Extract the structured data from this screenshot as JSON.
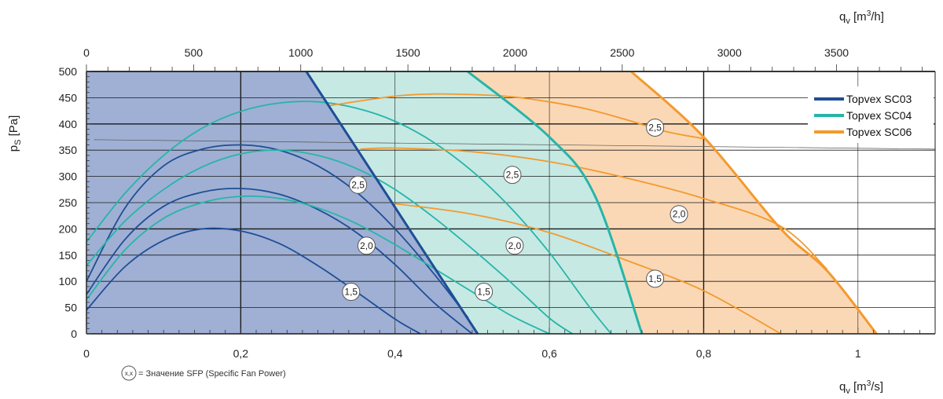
{
  "chart_data": {
    "type": "line",
    "x_bottom": {
      "unit": "m3/s",
      "range": [
        0,
        1.1
      ],
      "ticks": [
        "0",
        "0,2",
        "0,4",
        "0,6",
        "0,8",
        "1"
      ],
      "tick_values": [
        0,
        0.2,
        0.4,
        0.6,
        0.8,
        1.0
      ]
    },
    "x_top": {
      "unit": "m3/h",
      "range": [
        0,
        3960
      ],
      "ticks": [
        "0",
        "500",
        "1000",
        "1500",
        "2000",
        "2500",
        "3000",
        "3500"
      ],
      "tick_values": [
        0,
        500,
        1000,
        1500,
        2000,
        2500,
        3000,
        3500
      ]
    },
    "y": {
      "range": [
        0,
        500
      ],
      "ticks": [
        "0",
        "50",
        "100",
        "150",
        "200",
        "250",
        "300",
        "350",
        "400",
        "450",
        "500"
      ],
      "tick_values": [
        0,
        50,
        100,
        150,
        200,
        250,
        300,
        350,
        400,
        450,
        500
      ]
    },
    "axis_labels": {
      "y_main": "p",
      "y_sub": "S",
      "y_unit": "[Pa]",
      "x_bottom_main": "q",
      "x_bottom_sub": "v",
      "x_bottom_unit_a": "[m",
      "x_bottom_unit_sup": "3",
      "x_bottom_unit_b": "/s]",
      "x_top_main": "q",
      "x_top_sub": "v",
      "x_top_unit_a": "[m",
      "x_top_unit_sup": "3",
      "x_top_unit_b": "/h]"
    },
    "legend": {
      "placement": "top-right",
      "entries": [
        "Topvex SC03",
        "Topvex SC04",
        "Topvex SC06"
      ]
    },
    "note": {
      "symbol": "x,x",
      "text": "= Значение SFP (Specific Fan Power)"
    },
    "colors": {
      "SC03": "#1f4e96",
      "SC04": "#26b5a8",
      "SC06": "#f39a2e",
      "SC03_fill": "#9fb0d4",
      "SC04_fill": "#c6e9e4",
      "SC06_fill": "#fad8b6"
    },
    "regions": [
      {
        "name": "Topvex SC03",
        "boundary": [
          [
            0.285,
            500
          ],
          [
            0.507,
            0
          ]
        ]
      },
      {
        "name": "Topvex SC04",
        "boundary": [
          [
            0.494,
            500
          ],
          [
            0.6,
            375
          ],
          [
            0.66,
            260
          ],
          [
            0.72,
            0
          ]
        ]
      },
      {
        "name": "Topvex SC06",
        "boundary": [
          [
            0.706,
            500
          ],
          [
            0.8,
            375
          ],
          [
            0.9,
            200
          ],
          [
            0.96,
            120
          ],
          [
            1.024,
            0
          ]
        ]
      }
    ],
    "curves": [
      {
        "series": "Topvex SC03",
        "points": [
          [
            0,
            100
          ],
          [
            0.05,
            240
          ],
          [
            0.1,
            320
          ],
          [
            0.15,
            352
          ],
          [
            0.2,
            360
          ],
          [
            0.25,
            350
          ],
          [
            0.3,
            320
          ],
          [
            0.35,
            270
          ],
          [
            0.4,
            200
          ],
          [
            0.45,
            115
          ],
          [
            0.495,
            30
          ]
        ]
      },
      {
        "series": "Topvex SC03",
        "points": [
          [
            0,
            75
          ],
          [
            0.05,
            180
          ],
          [
            0.1,
            243
          ],
          [
            0.15,
            270
          ],
          [
            0.2,
            277
          ],
          [
            0.25,
            266
          ],
          [
            0.3,
            237
          ],
          [
            0.35,
            193
          ],
          [
            0.4,
            132
          ],
          [
            0.45,
            60
          ],
          [
            0.5,
            0
          ]
        ]
      },
      {
        "series": "Topvex SC03",
        "points": [
          [
            0,
            45
          ],
          [
            0.05,
            128
          ],
          [
            0.1,
            178
          ],
          [
            0.15,
            200
          ],
          [
            0.2,
            196
          ],
          [
            0.25,
            172
          ],
          [
            0.3,
            130
          ],
          [
            0.35,
            80
          ],
          [
            0.4,
            28
          ],
          [
            0.433,
            0
          ]
        ]
      },
      {
        "series": "Topvex SC04",
        "points": [
          [
            0,
            175
          ],
          [
            0.05,
            268
          ],
          [
            0.1,
            340
          ],
          [
            0.15,
            392
          ],
          [
            0.2,
            424
          ],
          [
            0.25,
            440
          ],
          [
            0.3,
            442
          ],
          [
            0.35,
            430
          ],
          [
            0.4,
            405
          ],
          [
            0.45,
            365
          ],
          [
            0.5,
            310
          ],
          [
            0.55,
            240
          ],
          [
            0.6,
            155
          ],
          [
            0.65,
            55
          ],
          [
            0.68,
            0
          ]
        ]
      },
      {
        "series": "Topvex SC04",
        "points": [
          [
            0,
            130
          ],
          [
            0.05,
            215
          ],
          [
            0.1,
            275
          ],
          [
            0.15,
            318
          ],
          [
            0.2,
            343
          ],
          [
            0.25,
            350
          ],
          [
            0.3,
            340
          ],
          [
            0.35,
            315
          ],
          [
            0.4,
            275
          ],
          [
            0.45,
            222
          ],
          [
            0.5,
            162
          ],
          [
            0.55,
            98
          ],
          [
            0.6,
            30
          ],
          [
            0.63,
            0
          ]
        ]
      },
      {
        "series": "Topvex SC04",
        "points": [
          [
            0,
            65
          ],
          [
            0.05,
            160
          ],
          [
            0.1,
            220
          ],
          [
            0.15,
            250
          ],
          [
            0.2,
            262
          ],
          [
            0.25,
            258
          ],
          [
            0.3,
            240
          ],
          [
            0.35,
            210
          ],
          [
            0.4,
            170
          ],
          [
            0.45,
            125
          ],
          [
            0.5,
            80
          ],
          [
            0.55,
            35
          ],
          [
            0.6,
            0
          ]
        ]
      },
      {
        "series": "Topvex SC06",
        "points": [
          [
            0.315,
            435
          ],
          [
            0.4,
            453
          ],
          [
            0.45,
            457
          ],
          [
            0.5,
            456
          ],
          [
            0.55,
            452
          ],
          [
            0.6,
            442
          ],
          [
            0.65,
            428
          ],
          [
            0.7,
            408
          ],
          [
            0.75,
            386
          ],
          [
            0.8,
            372
          ]
        ]
      },
      {
        "series": "Topvex SC06",
        "points": [
          [
            0.355,
            352
          ],
          [
            0.4,
            354
          ],
          [
            0.5,
            347
          ],
          [
            0.6,
            328
          ],
          [
            0.7,
            297
          ],
          [
            0.8,
            258
          ],
          [
            0.9,
            205
          ],
          [
            0.96,
            123
          ]
        ]
      },
      {
        "series": "Topvex SC06",
        "points": [
          [
            0.4,
            248
          ],
          [
            0.5,
            228
          ],
          [
            0.6,
            193
          ],
          [
            0.7,
            140
          ],
          [
            0.8,
            82
          ],
          [
            0.9,
            0
          ]
        ]
      }
    ],
    "reference_line": {
      "points": [
        [
          0.01,
          370
        ],
        [
          1.1,
          352
        ]
      ]
    },
    "sfp_markers": [
      {
        "label": "2,5",
        "x": 0.352,
        "y": 284
      },
      {
        "label": "2,0",
        "x": 0.363,
        "y": 168
      },
      {
        "label": "1,5",
        "x": 0.343,
        "y": 80
      },
      {
        "label": "2,5",
        "x": 0.552,
        "y": 303
      },
      {
        "label": "2,0",
        "x": 0.555,
        "y": 168
      },
      {
        "label": "1,5",
        "x": 0.515,
        "y": 80
      },
      {
        "label": "2,5",
        "x": 0.737,
        "y": 393
      },
      {
        "label": "2,0",
        "x": 0.768,
        "y": 228
      },
      {
        "label": "1,5",
        "x": 0.737,
        "y": 105
      }
    ]
  }
}
